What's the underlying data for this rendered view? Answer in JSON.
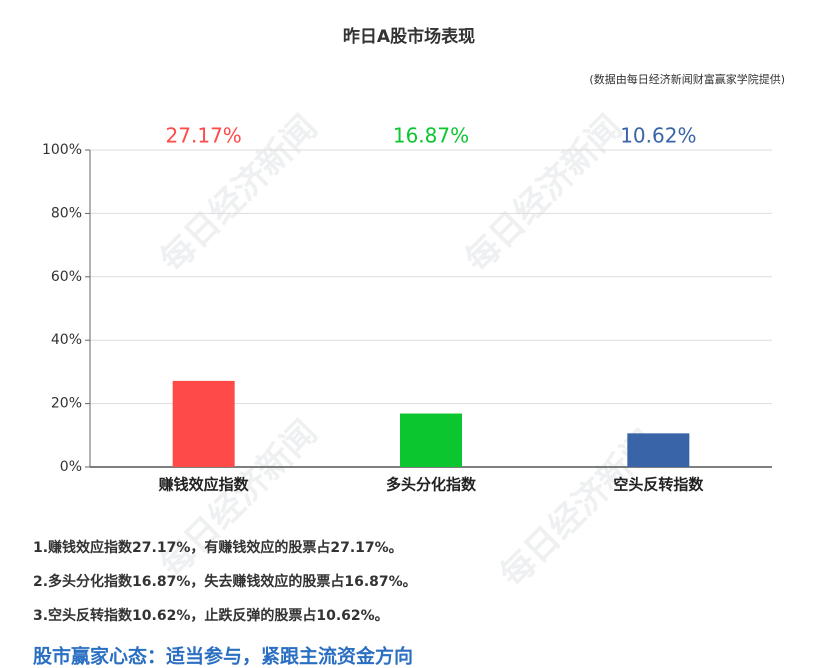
{
  "chart_data": {
    "type": "bar",
    "title": "昨日A股市场表现",
    "subtitle": "(数据由每日经济新闻财富赢家学院提供)",
    "categories": [
      "赚钱效应指数",
      "多头分化指数",
      "空头反转指数"
    ],
    "values": [
      27.17,
      16.87,
      10.62
    ],
    "value_labels": [
      "27.17%",
      "16.87%",
      "10.62%"
    ],
    "colors": [
      "#ff4a4a",
      "#0cc630",
      "#3a64a8"
    ],
    "ylim": [
      0,
      100
    ],
    "yticks": [
      {
        "value": 0,
        "label": "0%"
      },
      {
        "value": 20,
        "label": "20%"
      },
      {
        "value": 40,
        "label": "40%"
      },
      {
        "value": 60,
        "label": "60%"
      },
      {
        "value": 80,
        "label": "80%"
      },
      {
        "value": 100,
        "label": "100%"
      }
    ],
    "grid": true
  },
  "watermark": "每日经济新闻",
  "notes": [
    "1.赚钱效应指数27.17%，有赚钱效应的股票占27.17%。",
    "2.多头分化指数16.87%，失去赚钱效应的股票占16.87%。",
    "3.空头反转指数10.62%，止跌反弹的股票占10.62%。"
  ],
  "slogan": "股市赢家心态：适当参与，紧跟主流资金方向"
}
